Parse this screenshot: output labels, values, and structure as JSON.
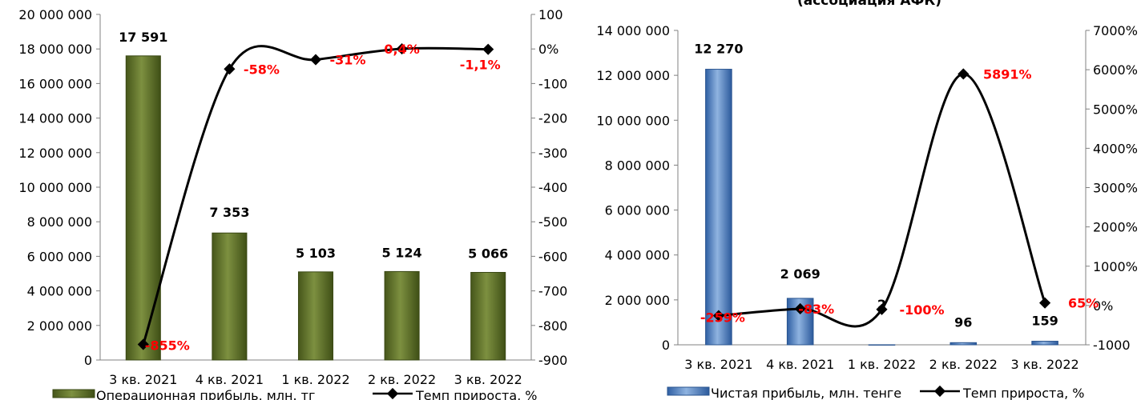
{
  "colors": {
    "bar_left": "#5a6b22",
    "bar_left_light": "#8a9d45",
    "bar_right": "#3f72b8",
    "bar_right_light": "#8fb3e0",
    "line": "#000000",
    "pct_label": "#ff0000",
    "axis": "#808080"
  },
  "chart_data": [
    {
      "type": "bar",
      "title": "",
      "categories": [
        "3 кв. 2021",
        "4 кв. 2021",
        "1 кв. 2022",
        "2 кв. 2022",
        "3 кв. 2022"
      ],
      "y_ticks": [
        "0",
        "2 000 000",
        "4 000 000",
        "6 000 000",
        "8 000 000",
        "10 000 000",
        "12 000 000",
        "14 000 000",
        "16 000 000",
        "18 000 000",
        "20 000 000"
      ],
      "y2_ticks": [
        "100",
        "0%",
        "-100",
        "-200",
        "-300",
        "-400",
        "-500",
        "-600",
        "-700",
        "-800",
        "-900"
      ],
      "ylim": [
        0,
        20000000
      ],
      "y2lim": [
        -900,
        100
      ],
      "series": [
        {
          "name": "Операционная прибыль, млн. тг",
          "kind": "bar",
          "values": [
            17591,
            7353,
            5103,
            5124,
            5066
          ],
          "bar_heights": [
            17600000,
            7350000,
            5100000,
            5120000,
            5070000
          ],
          "labels": [
            "17 591",
            "7 353",
            "5 103",
            "5 124",
            "5 066"
          ]
        },
        {
          "name": "Темп прироста, %",
          "kind": "line",
          "axis": "secondary",
          "values": [
            -855,
            -58,
            -31,
            0.4,
            -1.1
          ],
          "labels": [
            "-855%",
            "-58%",
            "-31%",
            "0,4%",
            "-1,1%"
          ]
        }
      ]
    },
    {
      "type": "bar",
      "title": "(ассоциация АФК)",
      "categories": [
        "3 кв. 2021",
        "4 кв. 2021",
        "1 кв. 2022",
        "2 кв. 2022",
        "3 кв. 2022"
      ],
      "y_ticks": [
        "0",
        "2 000 000",
        "4 000 000",
        "6 000 000",
        "8 000 000",
        "10 000 000",
        "12 000 000",
        "14 000 000"
      ],
      "y2_ticks": [
        "-1000",
        "0%",
        "1000%",
        "2000%",
        "3000%",
        "4000%",
        "5000%",
        "6000%",
        "7000%"
      ],
      "ylim": [
        0,
        14000000
      ],
      "y2lim": [
        -1000,
        7000
      ],
      "series": [
        {
          "name": "Чистая прибыль, млн. тенге",
          "kind": "bar",
          "values": [
            12270,
            2069,
            2,
            96,
            159
          ],
          "bar_heights": [
            12270000,
            2069000,
            2000,
            96000,
            159000
          ],
          "labels": [
            "12 270",
            "2 069",
            "2",
            "96",
            "159"
          ]
        },
        {
          "name": "Темп прироста, %",
          "kind": "line",
          "axis": "secondary",
          "values": [
            -259,
            -83,
            -100,
            5891,
            65
          ],
          "labels": [
            "-259%",
            "-83%",
            "-100%",
            "5891%",
            "65%"
          ]
        }
      ]
    }
  ]
}
